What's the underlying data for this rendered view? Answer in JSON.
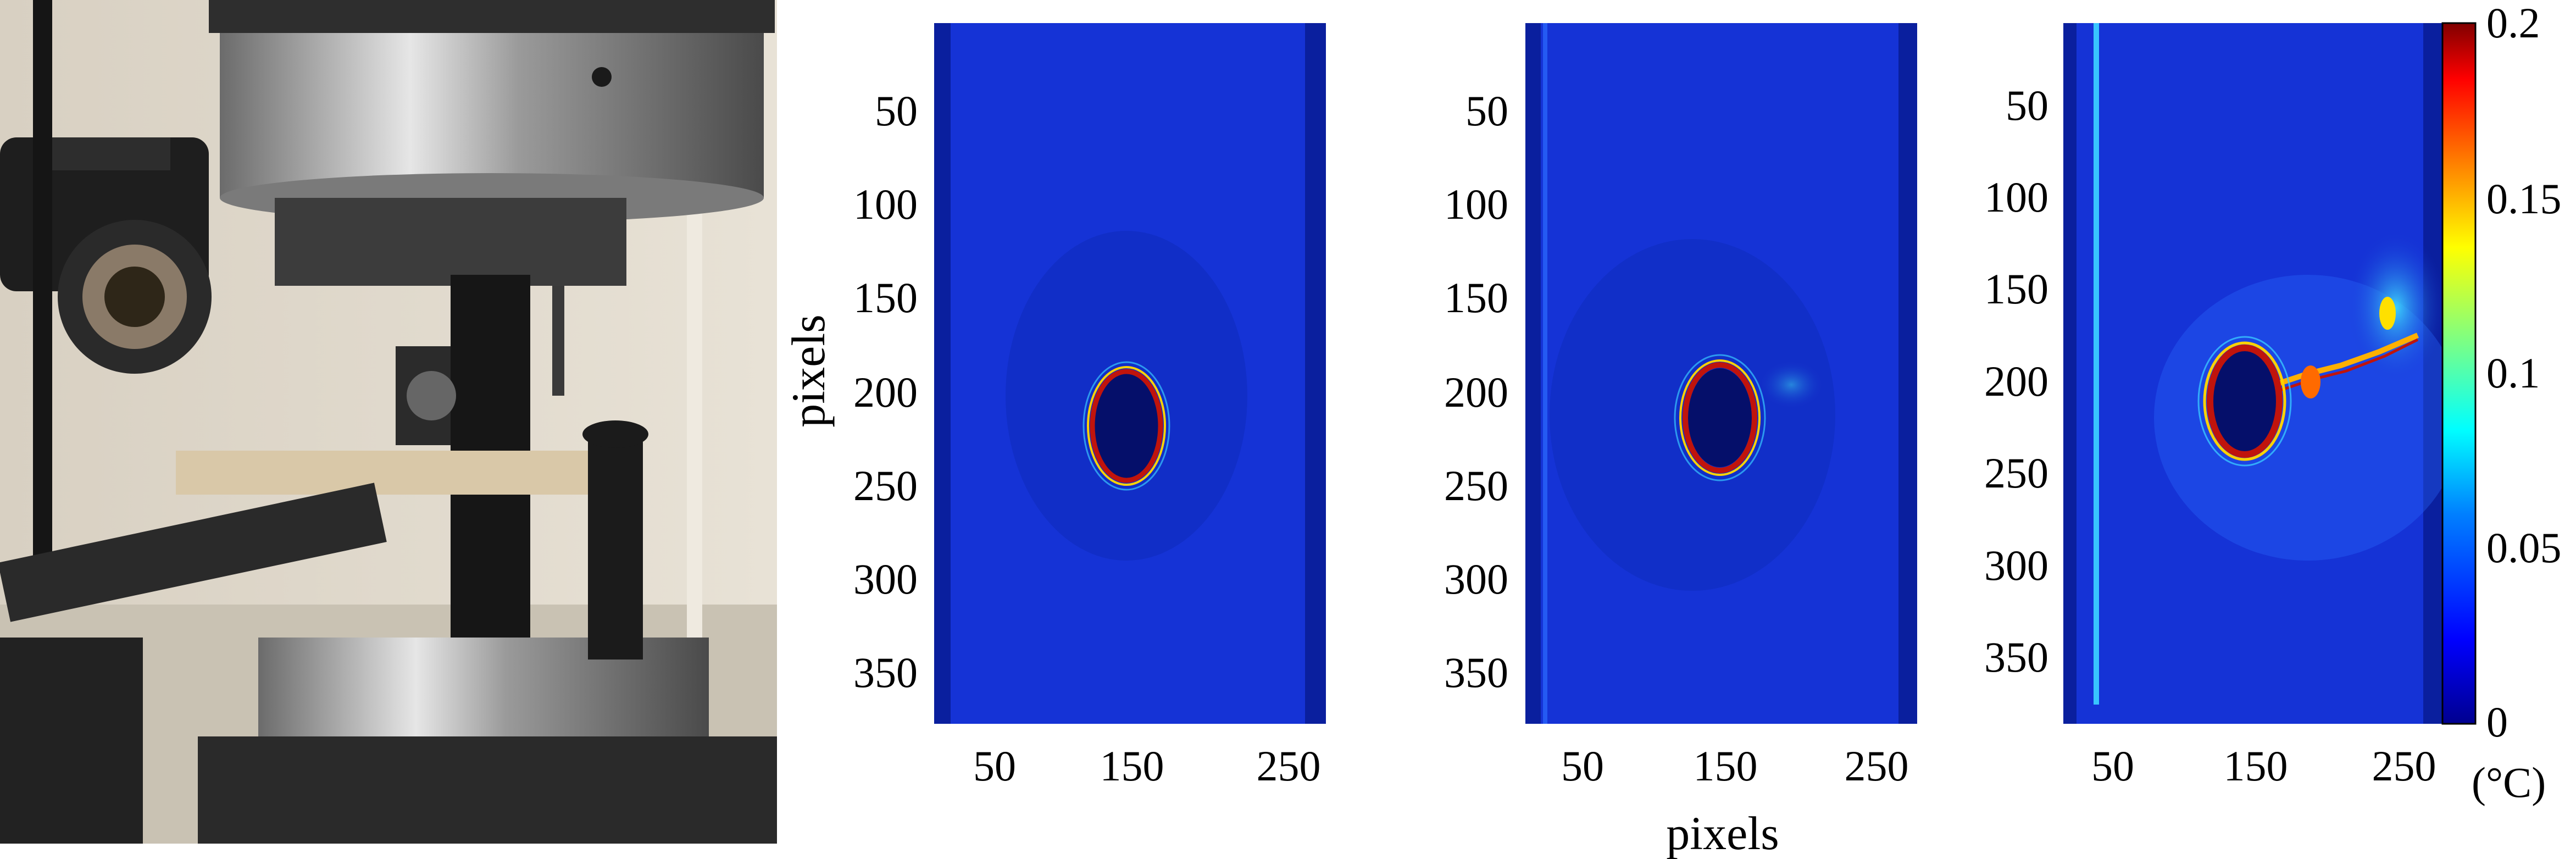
{
  "photo": {
    "icons": [
      "testing-machine-grip",
      "thermal-camera",
      "dic-camera",
      "specimen"
    ]
  },
  "panels": [
    {
      "name": "panel-1",
      "yticks": [
        "50",
        "100",
        "150",
        "200",
        "250",
        "300",
        "350"
      ],
      "xticks": [
        "50",
        "150",
        "250"
      ]
    },
    {
      "name": "panel-2",
      "yticks": [
        "50",
        "100",
        "150",
        "200",
        "250",
        "300",
        "350"
      ],
      "xticks": [
        "50",
        "150",
        "250"
      ]
    },
    {
      "name": "panel-3",
      "yticks": [
        "50",
        "100",
        "150",
        "200",
        "250",
        "300",
        "350"
      ],
      "xticks": [
        "50",
        "150",
        "250"
      ]
    }
  ],
  "labels": {
    "ylabel": "pixels",
    "xlabel": "pixels"
  },
  "colorbar": {
    "ticks": [
      "0.2",
      "0.15",
      "0.1",
      "0.05",
      "0"
    ],
    "unit": "(°C)",
    "range": [
      0,
      0.2
    ],
    "colormap": [
      "#00008f",
      "#0000ff",
      "#0080ff",
      "#00ffff",
      "#80ff80",
      "#ffff00",
      "#ff8000",
      "#ff0000",
      "#800000"
    ]
  },
  "colors": {
    "field_background": "#1533d6",
    "field_edge": "#0a1f9e",
    "hole_interior": "#050f6a",
    "hot_ring": "#c0140c"
  }
}
